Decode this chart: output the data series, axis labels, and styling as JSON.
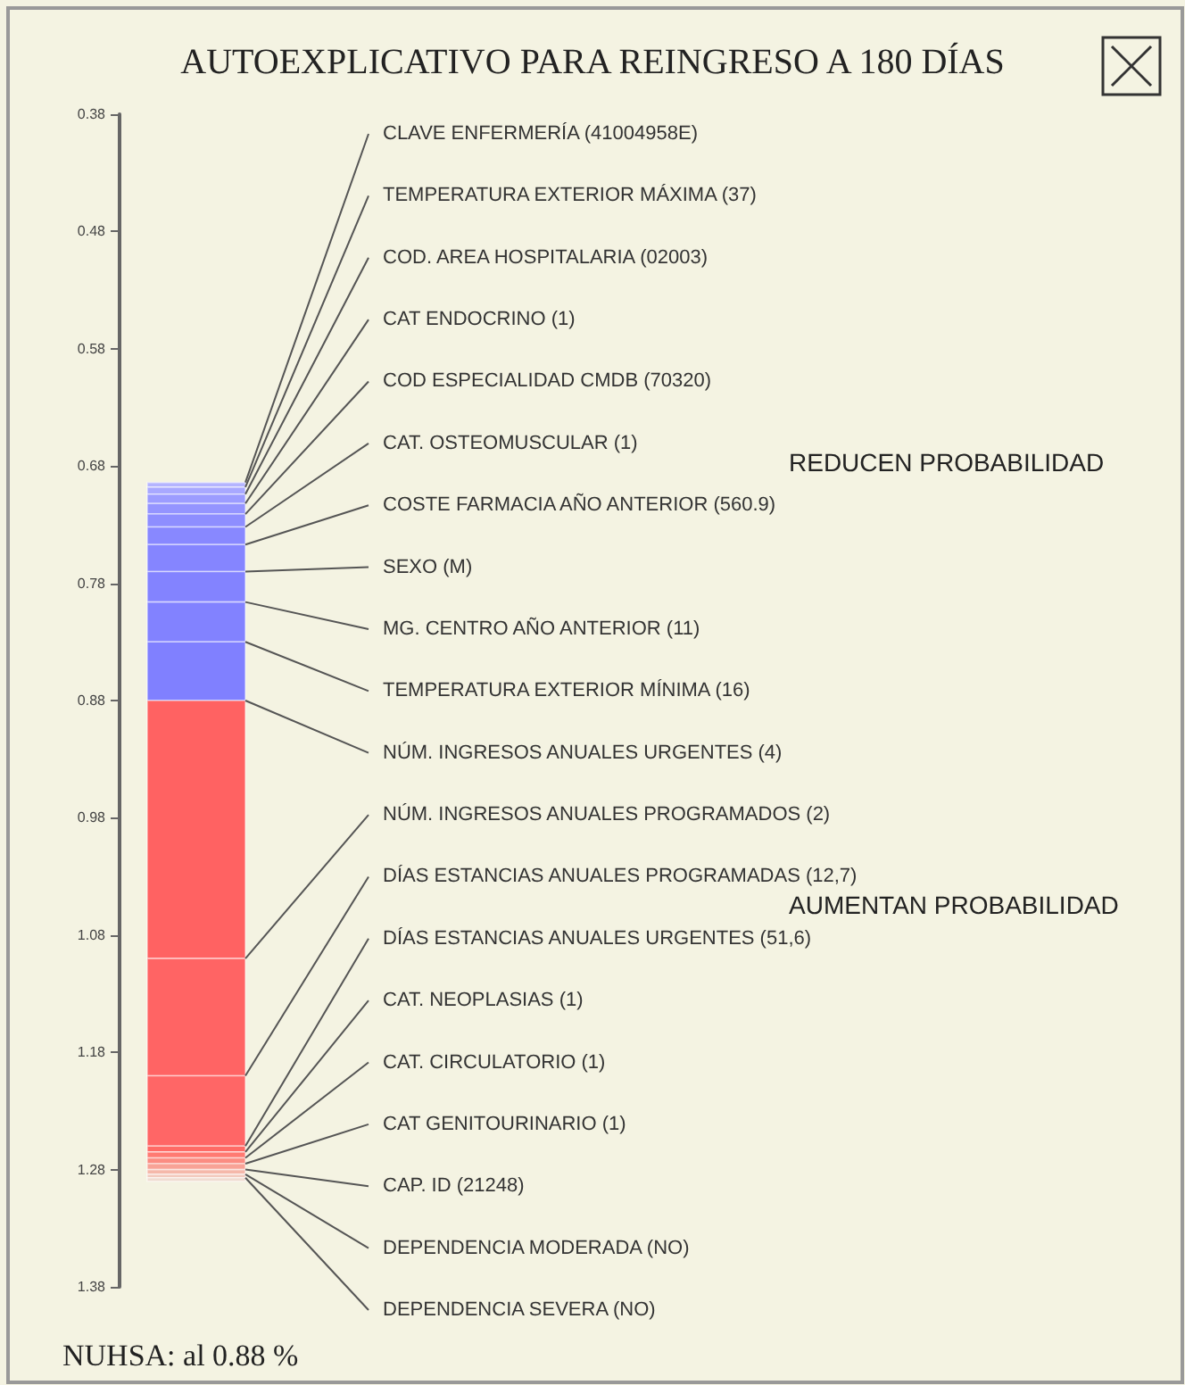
{
  "chart_data": {
    "type": "bar",
    "title": "AUTOEXPLICATIVO PARA REINGRESO A 180 DÍAS",
    "categories": [
      null
    ],
    "series": [
      {
        "name": "CLAVE ENFERMERÍA (41004958E)",
        "color": "#b4b4ff",
        "values": [
          -0.004
        ],
        "base": [
          0.698
        ]
      },
      {
        "name": "TEMPERATURA EXTERIOR MÁXIMA (37)",
        "color": "#a8a8ff",
        "values": [
          -0.006
        ],
        "base": [
          0.704
        ]
      },
      {
        "name": "COD. AREA HOSPITALARIA (02003)",
        "color": "#9c9cff",
        "values": [
          -0.008
        ],
        "base": [
          0.712
        ]
      },
      {
        "name": "CAT ENDOCRINO (1)",
        "color": "#9494ff",
        "values": [
          -0.009
        ],
        "base": [
          0.721
        ]
      },
      {
        "name": "COD ESPECIALIDAD CMDB (70320)",
        "color": "#8e8eff",
        "values": [
          -0.011
        ],
        "base": [
          0.732
        ]
      },
      {
        "name": "CAT. OSTEOMUSCULAR (1)",
        "color": "#8888ff",
        "values": [
          -0.015
        ],
        "base": [
          0.747
        ]
      },
      {
        "name": "COSTE FARMACIA AÑO ANTERIOR (560.9)",
        "color": "#8585ff",
        "values": [
          -0.023
        ],
        "base": [
          0.77
        ]
      },
      {
        "name": "SEXO (M)",
        "color": "#8383ff",
        "values": [
          -0.026
        ],
        "base": [
          0.796
        ]
      },
      {
        "name": "MG. CENTRO AÑO ANTERIOR (11)",
        "color": "#8282ff",
        "values": [
          -0.034
        ],
        "base": [
          0.83
        ]
      },
      {
        "name": "TEMPERATURA EXTERIOR MÍNIMA (16)",
        "color": "#8080ff",
        "values": [
          -0.05
        ],
        "base": [
          0.88
        ]
      },
      {
        "name": "NÚM. INGRESOS ANUALES URGENTES (4)",
        "color": "#ff6262",
        "values": [
          0.22
        ],
        "base": [
          0.88
        ]
      },
      {
        "name": "NÚM. INGRESOS ANUALES PROGRAMADOS (2)",
        "color": "#ff6464",
        "values": [
          0.1
        ],
        "base": [
          1.1
        ]
      },
      {
        "name": "DÍAS ESTANCIAS ANUALES PROGRAMADAS (12,7)",
        "color": "#ff6666",
        "values": [
          0.06
        ],
        "base": [
          1.2
        ]
      },
      {
        "name": "DÍAS ESTANCIAS ANUALES URGENTES (51,6)",
        "color": "#ff6a66",
        "values": [
          0.005
        ],
        "base": [
          1.26
        ]
      },
      {
        "name": "CAT. NEOPLASIAS (1)",
        "color": "#ff7a72",
        "values": [
          0.005
        ],
        "base": [
          1.265
        ]
      },
      {
        "name": "CAT. CIRCULATORIO (1)",
        "color": "#fb8c82",
        "values": [
          0.005
        ],
        "base": [
          1.27
        ]
      },
      {
        "name": "CAT GENITOURINARIO (1)",
        "color": "#f8a296",
        "values": [
          0.005
        ],
        "base": [
          1.275
        ]
      },
      {
        "name": "CAP. ID (21248)",
        "color": "#f5b8aa",
        "values": [
          0.004
        ],
        "base": [
          1.28
        ]
      },
      {
        "name": "DEPENDENCIA MODERADA (NO)",
        "color": "#f2cabe",
        "values": [
          0.003
        ],
        "base": [
          1.284
        ]
      },
      {
        "name": "DEPENDENCIA SEVERA (NO)",
        "color": "#f0dcd2",
        "values": [
          0.003
        ],
        "base": [
          1.287
        ]
      }
    ],
    "ylim": [
      1.38,
      0.38
    ],
    "yticks": [
      0.38,
      0.48,
      0.58,
      0.68,
      0.78,
      0.88,
      0.98,
      1.08,
      1.18,
      1.28,
      1.38
    ],
    "annotations": [
      "REDUCEN PROBABILIDAD",
      "AUMENTAN PROBABILIDAD",
      "NUHSA: al 0.88 %"
    ]
  }
}
